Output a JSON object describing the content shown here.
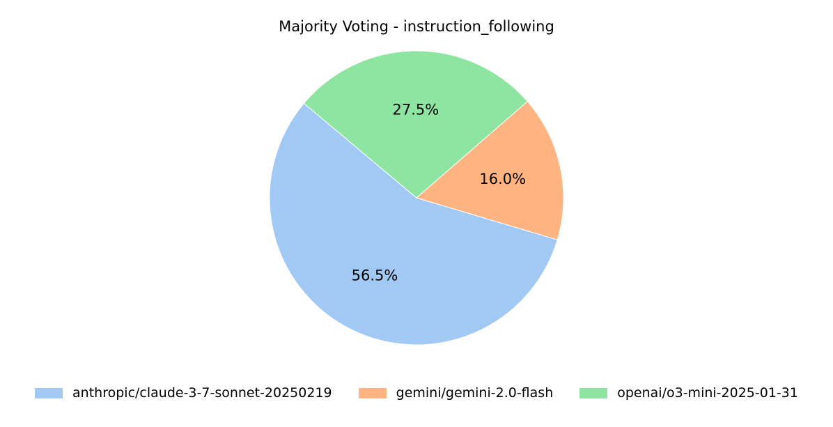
{
  "chart_data": {
    "type": "pie",
    "title": "Majority Voting - instruction_following",
    "start_angle_deg": 140,
    "direction": "counterclockwise",
    "labels": [
      "anthropic/claude-3-7-sonnet-20250219",
      "gemini/gemini-2.0-flash",
      "openai/o3-mini-2025-01-31"
    ],
    "values": [
      56.5,
      16.0,
      27.5
    ],
    "pct_labels": [
      "56.5%",
      "16.0%",
      "27.5%"
    ],
    "colors": [
      "#a1c9f4",
      "#ffb482",
      "#8de5a1"
    ],
    "legend_position": "bottom-center"
  }
}
